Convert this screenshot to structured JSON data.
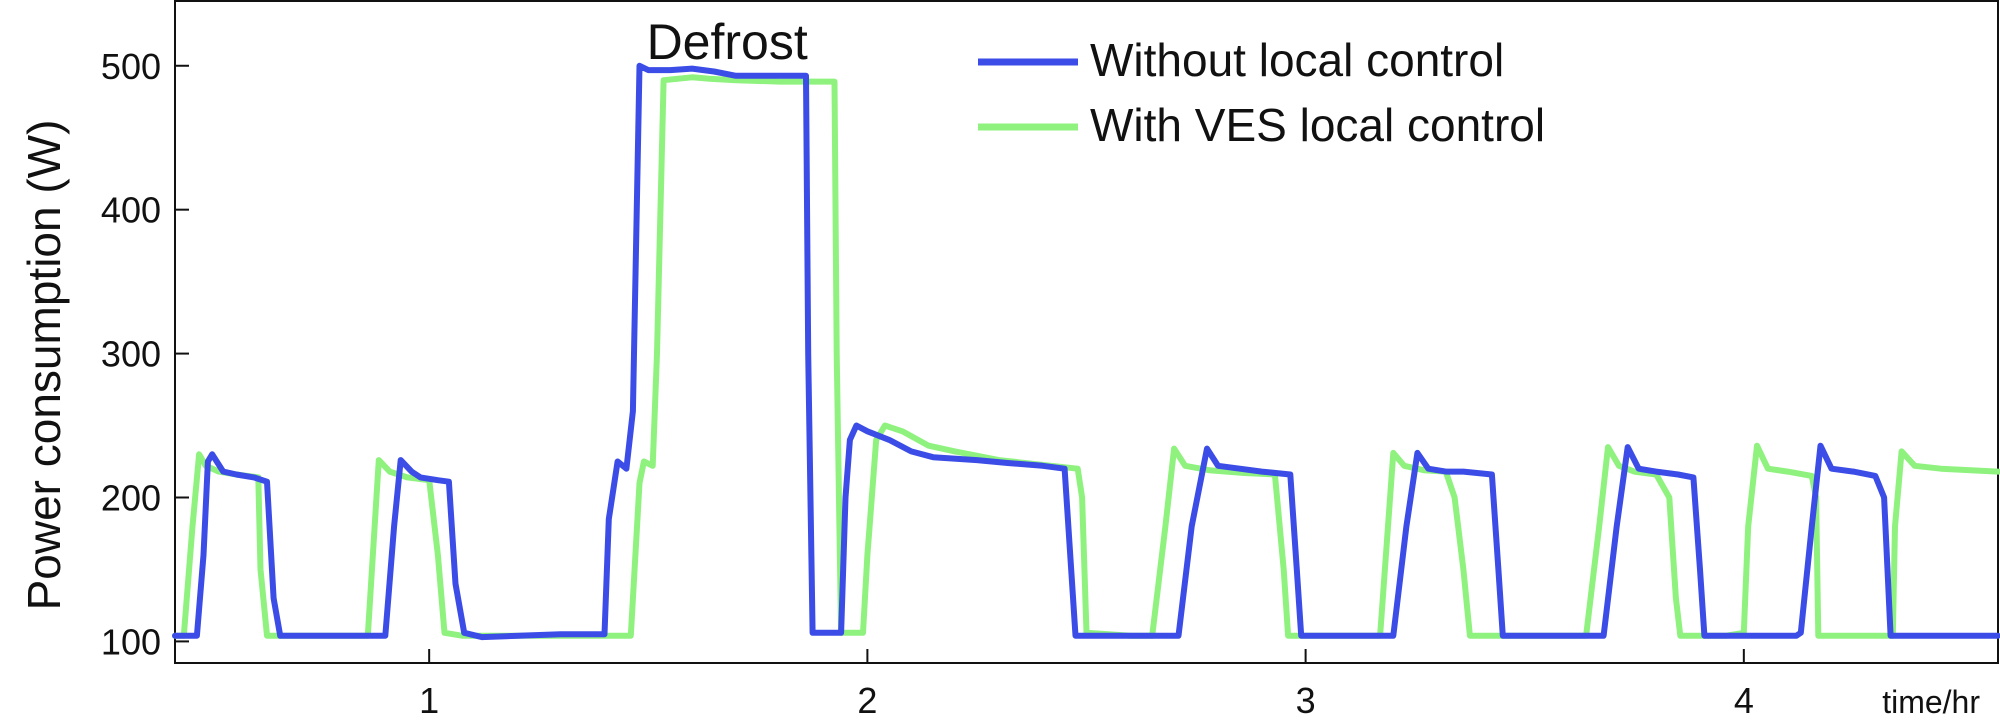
{
  "chart_data": {
    "type": "line",
    "xlabel": "time/hr",
    "ylabel": "Power consumption (W)",
    "xlim": [
      0.42,
      4.58
    ],
    "ylim": [
      85,
      545
    ],
    "x_ticks": [
      1,
      2,
      3,
      4
    ],
    "y_ticks": [
      100,
      200,
      300,
      400,
      500
    ],
    "grid": false,
    "legend": "top-right",
    "annotation": {
      "text": "Defrost",
      "x": 1.68,
      "y": 515
    },
    "series": [
      {
        "name": "Without local control",
        "color": "#3b4de6",
        "points": [
          [
            0.42,
            104
          ],
          [
            0.47,
            104
          ],
          [
            0.485,
            160
          ],
          [
            0.495,
            225
          ],
          [
            0.505,
            230
          ],
          [
            0.53,
            218
          ],
          [
            0.56,
            216
          ],
          [
            0.6,
            214
          ],
          [
            0.63,
            211
          ],
          [
            0.645,
            130
          ],
          [
            0.66,
            104
          ],
          [
            0.9,
            104
          ],
          [
            0.92,
            180
          ],
          [
            0.935,
            226
          ],
          [
            0.96,
            218
          ],
          [
            0.98,
            214
          ],
          [
            1.02,
            212
          ],
          [
            1.045,
            211
          ],
          [
            1.06,
            140
          ],
          [
            1.08,
            106
          ],
          [
            1.12,
            103
          ],
          [
            1.3,
            105
          ],
          [
            1.4,
            105
          ],
          [
            1.41,
            185
          ],
          [
            1.43,
            225
          ],
          [
            1.45,
            220
          ],
          [
            1.465,
            260
          ],
          [
            1.48,
            500
          ],
          [
            1.5,
            497
          ],
          [
            1.55,
            497
          ],
          [
            1.6,
            498
          ],
          [
            1.65,
            496
          ],
          [
            1.7,
            493
          ],
          [
            1.76,
            493
          ],
          [
            1.86,
            493
          ],
          [
            1.865,
            300
          ],
          [
            1.875,
            106
          ],
          [
            1.94,
            106
          ],
          [
            1.95,
            200
          ],
          [
            1.96,
            240
          ],
          [
            1.975,
            250
          ],
          [
            2.0,
            246
          ],
          [
            2.05,
            240
          ],
          [
            2.1,
            232
          ],
          [
            2.15,
            228
          ],
          [
            2.25,
            226
          ],
          [
            2.32,
            224
          ],
          [
            2.4,
            222
          ],
          [
            2.45,
            220
          ],
          [
            2.475,
            104
          ],
          [
            2.65,
            104
          ],
          [
            2.71,
            104
          ],
          [
            2.74,
            180
          ],
          [
            2.775,
            234
          ],
          [
            2.8,
            222
          ],
          [
            2.85,
            220
          ],
          [
            2.9,
            218
          ],
          [
            2.965,
            216
          ],
          [
            2.98,
            150
          ],
          [
            2.99,
            104
          ],
          [
            3.2,
            104
          ],
          [
            3.23,
            180
          ],
          [
            3.255,
            231
          ],
          [
            3.28,
            220
          ],
          [
            3.32,
            218
          ],
          [
            3.36,
            218
          ],
          [
            3.425,
            216
          ],
          [
            3.44,
            150
          ],
          [
            3.45,
            104
          ],
          [
            3.68,
            104
          ],
          [
            3.71,
            180
          ],
          [
            3.735,
            235
          ],
          [
            3.76,
            220
          ],
          [
            3.8,
            218
          ],
          [
            3.85,
            216
          ],
          [
            3.885,
            214
          ],
          [
            3.9,
            150
          ],
          [
            3.91,
            104
          ],
          [
            4.1,
            104
          ],
          [
            4.12,
            104
          ],
          [
            4.13,
            106
          ],
          [
            4.155,
            180
          ],
          [
            4.175,
            236
          ],
          [
            4.2,
            220
          ],
          [
            4.25,
            218
          ],
          [
            4.3,
            215
          ],
          [
            4.32,
            200
          ],
          [
            4.335,
            104
          ],
          [
            4.42,
            104
          ],
          [
            4.58,
            104
          ]
        ]
      },
      {
        "name": "With VES local control",
        "color": "#8ff27e",
        "points": [
          [
            0.42,
            104
          ],
          [
            0.44,
            104
          ],
          [
            0.46,
            180
          ],
          [
            0.475,
            230
          ],
          [
            0.49,
            222
          ],
          [
            0.52,
            218
          ],
          [
            0.56,
            216
          ],
          [
            0.61,
            214
          ],
          [
            0.615,
            150
          ],
          [
            0.63,
            104
          ],
          [
            0.72,
            104
          ],
          [
            0.86,
            104
          ],
          [
            0.885,
            226
          ],
          [
            0.91,
            218
          ],
          [
            0.95,
            214
          ],
          [
            1.0,
            212
          ],
          [
            1.02,
            160
          ],
          [
            1.035,
            106
          ],
          [
            1.075,
            104
          ],
          [
            1.23,
            104
          ],
          [
            1.46,
            104
          ],
          [
            1.48,
            210
          ],
          [
            1.49,
            225
          ],
          [
            1.51,
            222
          ],
          [
            1.52,
            300
          ],
          [
            1.535,
            490
          ],
          [
            1.6,
            492
          ],
          [
            1.64,
            491
          ],
          [
            1.7,
            490
          ],
          [
            1.8,
            489
          ],
          [
            1.925,
            489
          ],
          [
            1.93,
            300
          ],
          [
            1.94,
            106
          ],
          [
            1.99,
            106
          ],
          [
            2.0,
            160
          ],
          [
            2.02,
            240
          ],
          [
            2.04,
            250
          ],
          [
            2.08,
            246
          ],
          [
            2.14,
            236
          ],
          [
            2.2,
            232
          ],
          [
            2.3,
            226
          ],
          [
            2.42,
            222
          ],
          [
            2.48,
            220
          ],
          [
            2.49,
            200
          ],
          [
            2.5,
            106
          ],
          [
            2.6,
            104
          ],
          [
            2.65,
            104
          ],
          [
            2.68,
            180
          ],
          [
            2.7,
            234
          ],
          [
            2.725,
            222
          ],
          [
            2.78,
            219
          ],
          [
            2.86,
            217
          ],
          [
            2.93,
            216
          ],
          [
            2.95,
            150
          ],
          [
            2.96,
            104
          ],
          [
            3.17,
            104
          ],
          [
            3.2,
            231
          ],
          [
            3.225,
            222
          ],
          [
            3.27,
            219
          ],
          [
            3.32,
            218
          ],
          [
            3.34,
            200
          ],
          [
            3.36,
            150
          ],
          [
            3.375,
            104
          ],
          [
            3.64,
            104
          ],
          [
            3.67,
            180
          ],
          [
            3.69,
            235
          ],
          [
            3.715,
            222
          ],
          [
            3.75,
            218
          ],
          [
            3.8,
            216
          ],
          [
            3.83,
            200
          ],
          [
            3.845,
            130
          ],
          [
            3.855,
            104
          ],
          [
            3.96,
            104
          ],
          [
            4.0,
            106
          ],
          [
            4.01,
            180
          ],
          [
            4.03,
            236
          ],
          [
            4.055,
            220
          ],
          [
            4.1,
            218
          ],
          [
            4.155,
            215
          ],
          [
            4.165,
            200
          ],
          [
            4.17,
            104
          ],
          [
            4.34,
            104
          ],
          [
            4.345,
            180
          ],
          [
            4.36,
            232
          ],
          [
            4.39,
            222
          ],
          [
            4.45,
            220
          ],
          [
            4.58,
            218
          ]
        ]
      }
    ]
  }
}
